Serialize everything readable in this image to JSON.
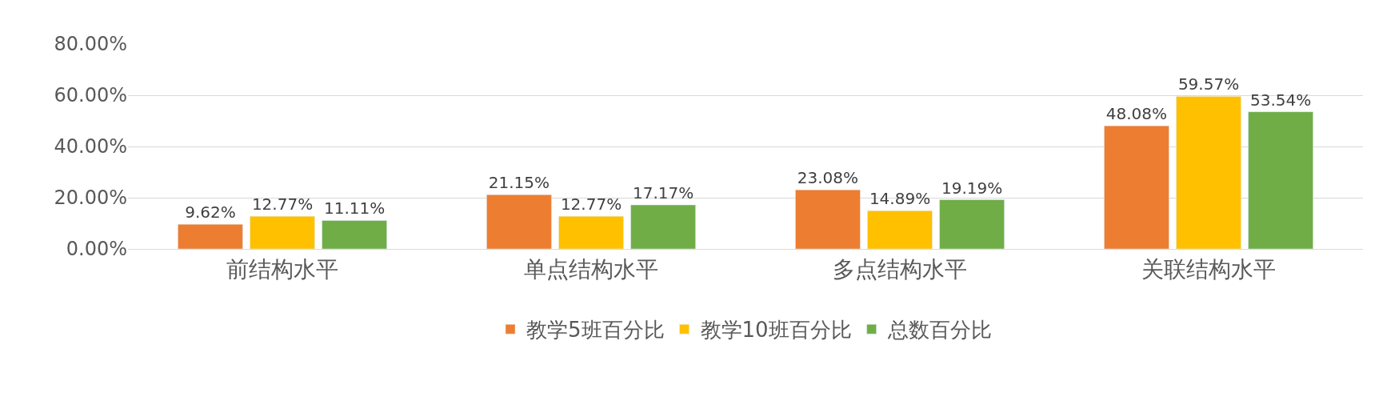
{
  "chart_data": {
    "type": "bar",
    "categories": [
      "前结构水平",
      "单点结构水平",
      "多点结构水平",
      "关联结构水平"
    ],
    "series": [
      {
        "name": "教学5班百分比",
        "color": "#ed7d31",
        "values": [
          9.62,
          21.15,
          23.08,
          48.08
        ],
        "value_labels": [
          "9.62%",
          "21.15%",
          "23.08%",
          "48.08%"
        ]
      },
      {
        "name": "教学10班百分比",
        "color": "#ffc000",
        "values": [
          12.77,
          12.77,
          14.89,
          59.57
        ],
        "value_labels": [
          "12.77%",
          "12.77%",
          "14.89%",
          "59.57%"
        ]
      },
      {
        "name": "总数百分比",
        "color": "#70ad47",
        "values": [
          11.11,
          17.17,
          19.19,
          53.54
        ],
        "value_labels": [
          "11.11%",
          "17.17%",
          "19.19%",
          "53.54%"
        ]
      }
    ],
    "ylim": [
      0,
      80
    ],
    "yticks": [
      {
        "value": 0,
        "label": "0.00%"
      },
      {
        "value": 20,
        "label": "20.00%"
      },
      {
        "value": 40,
        "label": "40.00%"
      },
      {
        "value": 60,
        "label": "60.00%"
      },
      {
        "value": 80,
        "label": "80.00%"
      }
    ],
    "grid": "y",
    "legend": "bottom"
  }
}
